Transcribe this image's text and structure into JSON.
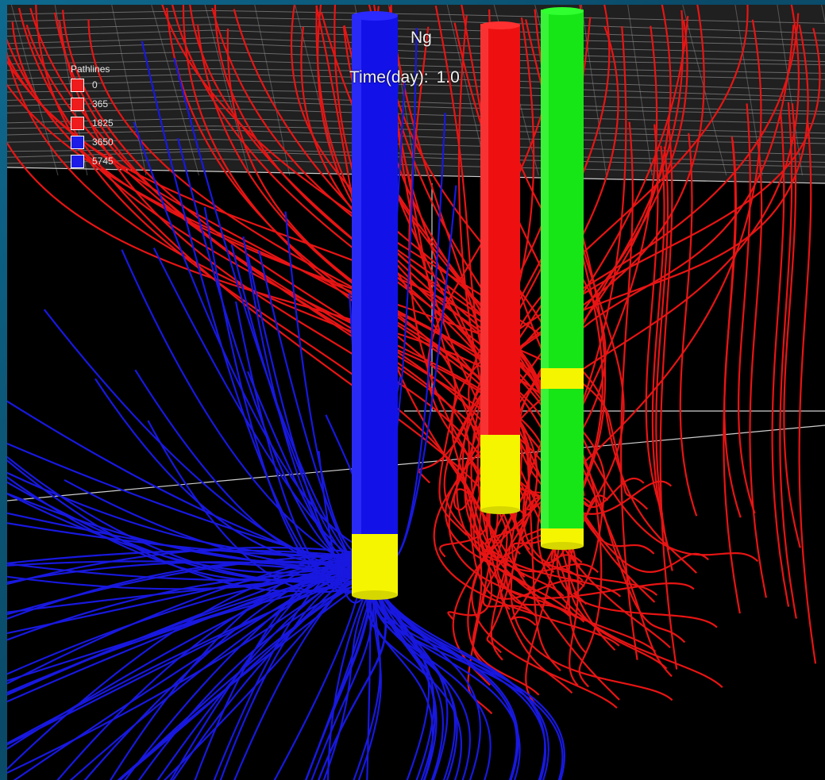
{
  "legend": {
    "title": "Pathlines",
    "items": [
      {
        "label": "0",
        "color": "#ee1c1c"
      },
      {
        "label": "365",
        "color": "#ee1c1c"
      },
      {
        "label": "1825",
        "color": "#ee1c1c"
      },
      {
        "label": "3650",
        "color": "#1c1ce6"
      },
      {
        "label": "5745",
        "color": "#1c1ce6"
      }
    ]
  },
  "hud": {
    "title": "Ng",
    "time_label": "Time(day):",
    "time_value": "1.0"
  },
  "wells": [
    {
      "name": "blue-well",
      "color": "#1212e8",
      "screen_color": "#f5f500"
    },
    {
      "name": "red-well",
      "color": "#ee1010",
      "screen_color": "#f5f500"
    },
    {
      "name": "green-well",
      "color": "#16e616",
      "screen_color": "#f5f500"
    }
  ],
  "colors": {
    "background": "#000000",
    "frame": "#0b5a7c",
    "pathline_red": "#e81414",
    "pathline_blue": "#1818e0",
    "grid_gray": "#9a9a9a"
  }
}
